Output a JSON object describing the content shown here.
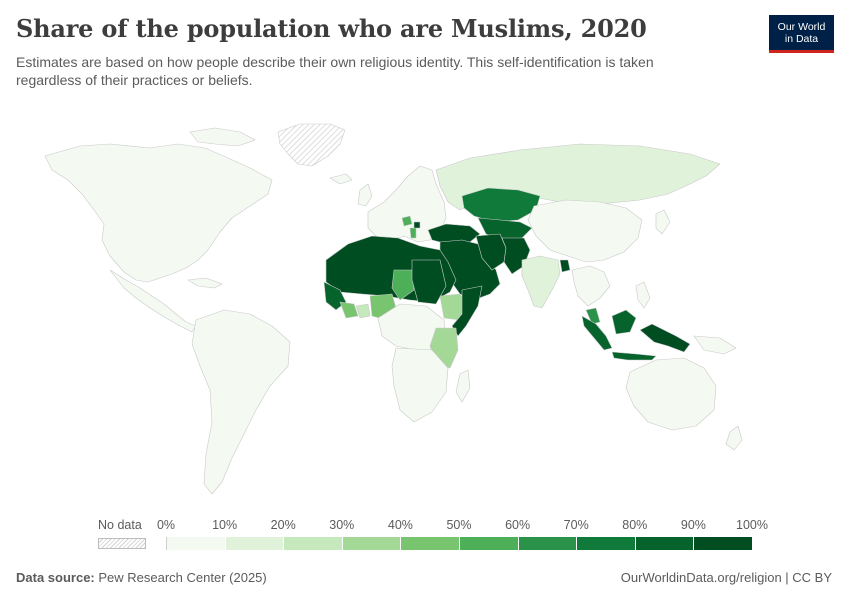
{
  "header": {
    "title": "Share of the population who are Muslims, 2020",
    "subtitle": "Estimates are based on how people describe their own religious identity. This self-identification is taken regardless of their practices or beliefs.",
    "logo_line1": "Our World",
    "logo_line2": "in Data"
  },
  "legend": {
    "no_data_label": "No data",
    "ticks": [
      "0%",
      "10%",
      "20%",
      "30%",
      "40%",
      "50%",
      "60%",
      "70%",
      "80%",
      "90%",
      "100%"
    ],
    "colors": [
      "#f4faf2",
      "#e0f2da",
      "#c6e8bd",
      "#a3d897",
      "#79c46f",
      "#4daf57",
      "#2a9249",
      "#0f7a3a",
      "#06632c",
      "#004d22"
    ]
  },
  "footer": {
    "source_label": "Data source:",
    "source_text": "Pew Research Center (2025)",
    "url_text": "OurWorldinData.org/religion | CC BY"
  },
  "map_data": {
    "type": "choropleth",
    "regions": [
      {
        "name": "North America",
        "value_bin": "0-10%"
      },
      {
        "name": "Latin America",
        "value_bin": "0-10%"
      },
      {
        "name": "Europe",
        "value_bin": "0-10%"
      },
      {
        "name": "Russia",
        "value_bin": "10-20%"
      },
      {
        "name": "Bosnia and Herzegovina",
        "value_bin": "50-60%"
      },
      {
        "name": "Albania",
        "value_bin": "50-60%"
      },
      {
        "name": "Kosovo",
        "value_bin": "90-100%"
      },
      {
        "name": "Turkey",
        "value_bin": "90-100%"
      },
      {
        "name": "North Africa",
        "value_bin": "90-100%"
      },
      {
        "name": "Mauritania",
        "value_bin": "90-100%"
      },
      {
        "name": "Mali",
        "value_bin": "90-100%"
      },
      {
        "name": "Niger",
        "value_bin": "90-100%"
      },
      {
        "name": "Senegal",
        "value_bin": "90-100%"
      },
      {
        "name": "Sudan",
        "value_bin": "90-100%"
      },
      {
        "name": "Chad",
        "value_bin": "50-60%"
      },
      {
        "name": "Burkina Faso",
        "value_bin": "60-70%"
      },
      {
        "name": "Guinea",
        "value_bin": "80-90%"
      },
      {
        "name": "Nigeria",
        "value_bin": "40-50%"
      },
      {
        "name": "Ivory Coast",
        "value_bin": "40-50%"
      },
      {
        "name": "Ethiopia",
        "value_bin": "30-40%"
      },
      {
        "name": "Somalia",
        "value_bin": "90-100%"
      },
      {
        "name": "Tanzania",
        "value_bin": "30-40%"
      },
      {
        "name": "Southern Africa",
        "value_bin": "0-10%"
      },
      {
        "name": "Middle East",
        "value_bin": "90-100%"
      },
      {
        "name": "Iran",
        "value_bin": "90-100%"
      },
      {
        "name": "Afghanistan",
        "value_bin": "90-100%"
      },
      {
        "name": "Pakistan",
        "value_bin": "90-100%"
      },
      {
        "name": "Central Asia",
        "value_bin": "80-90%"
      },
      {
        "name": "Kazakhstan",
        "value_bin": "70-80%"
      },
      {
        "name": "India",
        "value_bin": "10-20%"
      },
      {
        "name": "Bangladesh",
        "value_bin": "90-100%"
      },
      {
        "name": "China",
        "value_bin": "0-10%"
      },
      {
        "name": "Malaysia",
        "value_bin": "60-70%"
      },
      {
        "name": "Indonesia",
        "value_bin": "80-90%"
      },
      {
        "name": "Australia",
        "value_bin": "0-10%"
      },
      {
        "name": "Greenland",
        "value_bin": "No data"
      }
    ]
  }
}
